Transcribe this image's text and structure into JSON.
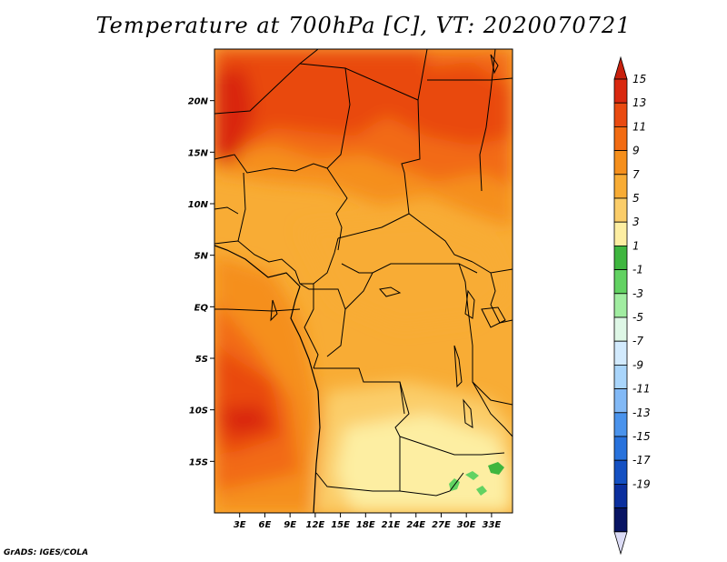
{
  "title": "Temperature at 700hPa [C], VT: 2020070721",
  "credit": "GrADS: IGES/COLA",
  "map": {
    "lon_range": [
      0,
      35.5
    ],
    "lat_range": [
      -20,
      25
    ],
    "lat_ticks": [
      {
        "value": 20,
        "label": "20N"
      },
      {
        "value": 15,
        "label": "15N"
      },
      {
        "value": 10,
        "label": "10N"
      },
      {
        "value": 5,
        "label": "5N"
      },
      {
        "value": 0,
        "label": "EQ"
      },
      {
        "value": -5,
        "label": "5S"
      },
      {
        "value": -10,
        "label": "10S"
      },
      {
        "value": -15,
        "label": "15S"
      }
    ],
    "lon_ticks": [
      {
        "value": 3,
        "label": "3E"
      },
      {
        "value": 6,
        "label": "6E"
      },
      {
        "value": 9,
        "label": "9E"
      },
      {
        "value": 12,
        "label": "12E"
      },
      {
        "value": 15,
        "label": "15E"
      },
      {
        "value": 18,
        "label": "18E"
      },
      {
        "value": 21,
        "label": "21E"
      },
      {
        "value": 24,
        "label": "24E"
      },
      {
        "value": 27,
        "label": "27E"
      },
      {
        "value": 30,
        "label": "30E"
      },
      {
        "value": 33,
        "label": "33E"
      }
    ]
  },
  "colorbar": {
    "labels": [
      "15",
      "13",
      "11",
      "9",
      "7",
      "5",
      "3",
      "1",
      "-1",
      "-3",
      "-5",
      "-7",
      "-9",
      "-11",
      "-13",
      "-15",
      "-17",
      "-19"
    ],
    "colors": [
      "#d9280f",
      "#e94a10",
      "#f26b12",
      "#f58f1c",
      "#f8ac35",
      "#fbcd69",
      "#fdeea2",
      "#3fb63f",
      "#62d262",
      "#a1eda1",
      "#def7e6",
      "#d2eafd",
      "#a9d5fb",
      "#82b9f6",
      "#4a93ec",
      "#2872dc",
      "#1450c2",
      "#0b2f9e",
      "#081463"
    ],
    "arrow_top": "#c8200d",
    "arrow_bottom": "#dcdcf6"
  }
}
